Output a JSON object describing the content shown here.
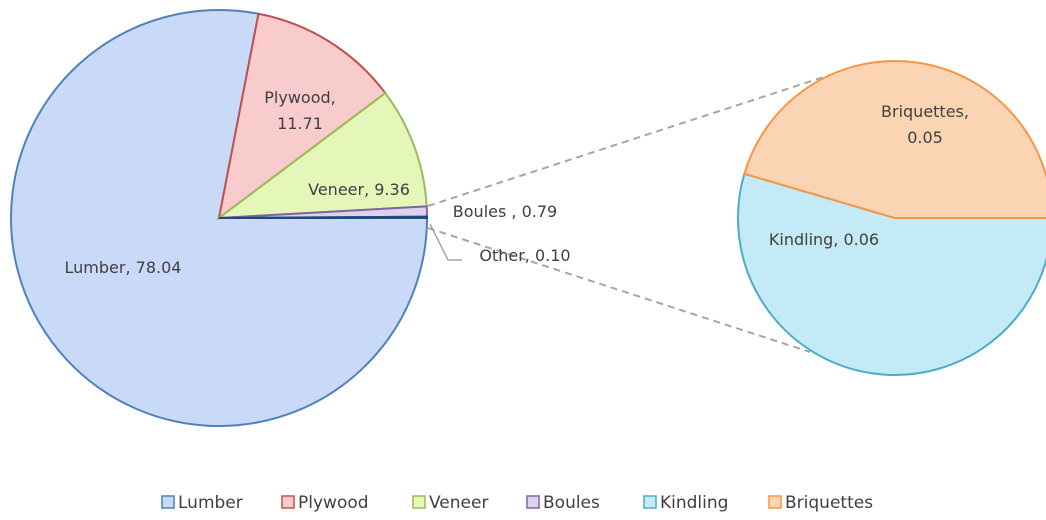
{
  "chart_data": {
    "type": "pie",
    "categories": [
      "Lumber",
      "Plywood",
      "Veneer",
      "Boules",
      "Other"
    ],
    "values": [
      78.04,
      11.71,
      9.36,
      0.79,
      0.1
    ],
    "value_labels": [
      "Lumber,  78.04",
      "Plywood, 11.71",
      "Veneer,  9.36",
      "Boules ,  0.79",
      "Other,  0.10"
    ],
    "colors": [
      "#4f81bd",
      "#c0504d",
      "#9bbb59",
      "#8064a2",
      "#1f497d"
    ],
    "fills": [
      "#c9daf8",
      "#f8cccc",
      "#e4f7b8",
      "#dcd2ef",
      "#c9daf8"
    ],
    "secondary": {
      "categories": [
        "Kindling",
        "Briquettes"
      ],
      "values": [
        0.06,
        0.05
      ],
      "value_labels": [
        "Kindling,  0.06",
        "Briquettes, 0.05"
      ],
      "colors": [
        "#4bacc6",
        "#f79646"
      ],
      "fills": [
        "#c4eaf8",
        "#fbd5b3"
      ]
    },
    "legend": "bottom"
  }
}
